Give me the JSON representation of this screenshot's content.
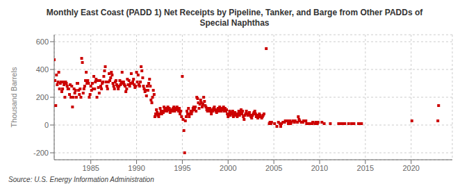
{
  "chart_data": {
    "type": "scatter",
    "title": "Monthly East Coast (PADD 1) Net Receipts by Pipeline, Tanker, and Barge from Other PADDs of\nSpecial Naphthas",
    "ylabel": "Thousand Barrels",
    "annotations": [
      "Source: U.S. Energy Information Administration"
    ],
    "color": "#cc0000",
    "marker": "square",
    "grid": true,
    "xlim": [
      1981.0,
      2024.5
    ],
    "ylim": [
      -250,
      650
    ],
    "xticks": [
      1985,
      1990,
      1995,
      2000,
      2005,
      2010,
      2015,
      2020
    ],
    "yticks": [
      -200,
      0,
      200,
      400,
      600
    ],
    "x": [
      1981.0,
      1981.08,
      1981.17,
      1981.25,
      1981.33,
      1981.42,
      1981.5,
      1981.58,
      1981.67,
      1981.75,
      1981.83,
      1981.92,
      1982.0,
      1982.08,
      1982.17,
      1982.25,
      1982.33,
      1982.42,
      1982.5,
      1982.58,
      1982.67,
      1982.75,
      1982.83,
      1982.92,
      1983.0,
      1983.08,
      1983.17,
      1983.25,
      1983.33,
      1983.42,
      1983.5,
      1983.58,
      1983.67,
      1983.75,
      1983.83,
      1983.92,
      1984.0,
      1984.08,
      1984.17,
      1984.25,
      1984.33,
      1984.42,
      1984.5,
      1984.58,
      1984.67,
      1984.75,
      1984.83,
      1984.92,
      1985.0,
      1985.08,
      1985.17,
      1985.25,
      1985.33,
      1985.42,
      1985.5,
      1985.58,
      1985.67,
      1985.75,
      1985.83,
      1985.92,
      1986.0,
      1986.08,
      1986.17,
      1986.25,
      1986.33,
      1986.42,
      1986.5,
      1986.58,
      1986.67,
      1986.75,
      1986.83,
      1986.92,
      1987.0,
      1987.08,
      1987.17,
      1987.25,
      1987.33,
      1987.42,
      1987.5,
      1987.58,
      1987.67,
      1987.75,
      1987.83,
      1987.92,
      1988.0,
      1988.08,
      1988.17,
      1988.25,
      1988.33,
      1988.42,
      1988.5,
      1988.58,
      1988.67,
      1988.75,
      1988.83,
      1988.92,
      1989.0,
      1989.08,
      1989.17,
      1989.25,
      1989.33,
      1989.42,
      1989.5,
      1989.58,
      1989.67,
      1989.75,
      1989.83,
      1989.92,
      1990.0,
      1990.08,
      1990.17,
      1990.25,
      1990.33,
      1990.42,
      1990.5,
      1990.58,
      1990.67,
      1990.75,
      1990.83,
      1990.92,
      1991.0,
      1991.08,
      1991.17,
      1991.25,
      1991.33,
      1991.42,
      1991.5,
      1991.58,
      1991.67,
      1991.75,
      1991.83,
      1991.92,
      1992.0,
      1992.08,
      1992.17,
      1992.25,
      1992.33,
      1992.42,
      1992.5,
      1992.58,
      1992.67,
      1992.75,
      1992.83,
      1992.92,
      1993.0,
      1993.08,
      1993.17,
      1993.25,
      1993.33,
      1993.42,
      1993.5,
      1993.58,
      1993.67,
      1993.75,
      1993.83,
      1993.92,
      1994.0,
      1994.08,
      1994.17,
      1994.25,
      1994.33,
      1994.42,
      1994.5,
      1994.58,
      1994.67,
      1994.75,
      1994.83,
      1994.92,
      1995.0,
      1995.08,
      1995.17,
      1995.25,
      1995.33,
      1995.42,
      1995.5,
      1995.58,
      1995.67,
      1995.75,
      1995.83,
      1995.92,
      1996.0,
      1996.08,
      1996.17,
      1996.25,
      1996.33,
      1996.42,
      1996.5,
      1996.58,
      1996.67,
      1996.75,
      1996.83,
      1996.92,
      1997.0,
      1997.08,
      1997.17,
      1997.25,
      1997.33,
      1997.42,
      1997.5,
      1997.58,
      1997.67,
      1997.75,
      1997.83,
      1997.92,
      1998.0,
      1998.08,
      1998.17,
      1998.25,
      1998.33,
      1998.42,
      1998.5,
      1998.58,
      1998.67,
      1998.75,
      1998.83,
      1998.92,
      1999.0,
      1999.08,
      1999.17,
      1999.25,
      1999.33,
      1999.42,
      1999.5,
      1999.58,
      1999.67,
      1999.75,
      1999.83,
      1999.92,
      2000.0,
      2000.08,
      2000.17,
      2000.25,
      2000.33,
      2000.42,
      2000.5,
      2000.58,
      2000.67,
      2000.75,
      2000.83,
      2000.92,
      2001.0,
      2001.08,
      2001.17,
      2001.25,
      2001.33,
      2001.42,
      2001.5,
      2001.58,
      2001.67,
      2001.75,
      2001.83,
      2001.92,
      2002.0,
      2002.08,
      2002.17,
      2002.25,
      2002.33,
      2002.42,
      2002.5,
      2002.58,
      2002.67,
      2002.75,
      2002.83,
      2002.92,
      2003.0,
      2003.08,
      2003.17,
      2003.25,
      2003.33,
      2003.42,
      2003.5,
      2003.58,
      2003.67,
      2003.75,
      2003.83,
      2003.92,
      2004.17,
      2004.5,
      2004.58,
      2004.67,
      2004.75,
      2005.08,
      2005.33,
      2005.5,
      2005.67,
      2005.75,
      2005.83,
      2006.0,
      2006.17,
      2006.25,
      2006.5,
      2006.58,
      2006.75,
      2006.83,
      2006.92,
      2007.08,
      2007.25,
      2007.33,
      2007.58,
      2007.67,
      2007.75,
      2007.83,
      2008.0,
      2008.17,
      2008.25,
      2008.5,
      2008.58,
      2008.75,
      2009.0,
      2009.17,
      2009.25,
      2009.5,
      2009.58,
      2009.75,
      2009.83,
      2010.25,
      2010.5,
      2011.17,
      2012.08,
      2012.25,
      2012.5,
      2012.67,
      2012.75,
      2013.17,
      2013.5,
      2013.75,
      2014.25,
      2014.5,
      2014.58,
      2020.08,
      2022.92,
      2023.0
    ],
    "values": [
      470,
      320,
      140,
      360,
      290,
      310,
      380,
      260,
      300,
      310,
      240,
      260,
      310,
      290,
      200,
      310,
      300,
      280,
      260,
      260,
      220,
      290,
      200,
      280,
      130,
      200,
      260,
      230,
      250,
      200,
      300,
      300,
      250,
      220,
      260,
      200,
      480,
      450,
      230,
      260,
      280,
      320,
      380,
      300,
      320,
      300,
      200,
      220,
      280,
      250,
      300,
      260,
      350,
      260,
      310,
      330,
      200,
      320,
      270,
      230,
      320,
      280,
      260,
      300,
      310,
      350,
      390,
      420,
      310,
      280,
      260,
      310,
      370,
      320,
      340,
      380,
      360,
      300,
      280,
      260,
      310,
      320,
      290,
      280,
      260,
      280,
      320,
      290,
      310,
      380,
      300,
      310,
      290,
      280,
      240,
      260,
      330,
      290,
      320,
      280,
      300,
      370,
      300,
      310,
      330,
      290,
      270,
      280,
      380,
      310,
      360,
      290,
      280,
      310,
      420,
      390,
      340,
      280,
      260,
      240,
      250,
      210,
      280,
      250,
      300,
      330,
      280,
      180,
      160,
      200,
      250,
      220,
      60,
      80,
      110,
      90,
      70,
      60,
      80,
      120,
      100,
      80,
      100,
      90,
      130,
      110,
      100,
      120,
      100,
      130,
      110,
      120,
      90,
      100,
      110,
      100,
      120,
      130,
      100,
      110,
      120,
      130,
      110,
      100,
      120,
      80,
      100,
      60,
      350,
      40,
      -40,
      -200,
      30,
      60,
      100,
      80,
      120,
      60,
      80,
      100,
      80,
      100,
      120,
      130,
      110,
      130,
      100,
      200,
      190,
      160,
      120,
      150,
      180,
      160,
      130,
      150,
      200,
      170,
      140,
      130,
      110,
      100,
      120,
      100,
      120,
      100,
      80,
      110,
      100,
      120,
      130,
      110,
      100,
      90,
      110,
      120,
      100,
      130,
      110,
      100,
      120,
      110,
      130,
      100,
      120,
      100,
      110,
      80,
      60,
      80,
      100,
      70,
      90,
      80,
      100,
      60,
      80,
      90,
      70,
      80,
      60,
      80,
      100,
      70,
      90,
      110,
      80,
      100,
      60,
      40,
      70,
      80,
      100,
      80,
      70,
      80,
      90,
      70,
      60,
      50,
      70,
      80,
      90,
      100,
      80,
      60,
      70,
      50,
      60,
      80,
      70,
      60,
      50,
      60,
      70,
      80,
      550,
      10,
      20,
      10,
      20,
      10,
      -10,
      20,
      10,
      -10,
      10,
      20,
      20,
      30,
      30,
      10,
      30,
      10,
      20,
      30,
      20,
      30,
      20,
      60,
      40,
      30,
      20,
      20,
      30,
      30,
      10,
      10,
      10,
      10,
      20,
      10,
      20,
      10,
      20,
      20,
      10,
      10,
      10,
      10,
      10,
      10,
      10,
      10,
      10,
      10,
      10,
      10,
      10,
      30,
      30,
      140
    ]
  }
}
